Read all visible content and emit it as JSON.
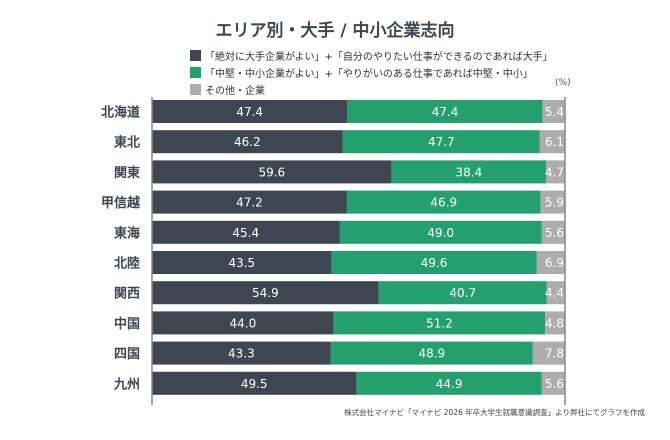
{
  "chart_data": {
    "type": "bar",
    "stacked": true,
    "orientation": "horizontal",
    "title": "エリア別・大手 / 中小企業志向",
    "unit": "(%)",
    "categories": [
      "北海道",
      "東北",
      "関東",
      "甲信越",
      "東海",
      "北陸",
      "関西",
      "中国",
      "四国",
      "九州"
    ],
    "series": [
      {
        "name": "「絶対に大手企業がよい」+「自分のやりたい仕事ができるのであれば大手」",
        "color": "#3d4651",
        "values": [
          47.4,
          46.2,
          59.6,
          47.2,
          45.4,
          43.5,
          54.9,
          44.0,
          43.3,
          49.5
        ]
      },
      {
        "name": "「中堅・中小企業がよい」+「やりがいのある仕事であれば中堅・中小」",
        "color": "#23a06e",
        "values": [
          47.4,
          47.7,
          38.4,
          46.9,
          49.0,
          49.6,
          40.7,
          51.2,
          48.9,
          44.9
        ]
      },
      {
        "name": "その他・企業",
        "color": "#adadad",
        "values": [
          5.4,
          6.1,
          4.7,
          5.9,
          5.6,
          6.9,
          4.4,
          4.8,
          7.8,
          5.6
        ]
      }
    ],
    "legend_position": "top",
    "grid": false,
    "source": "株式会社マイナビ「マイナビ 2026 年卒大学生就職意識調査」より弊社にてグラフを作成"
  }
}
